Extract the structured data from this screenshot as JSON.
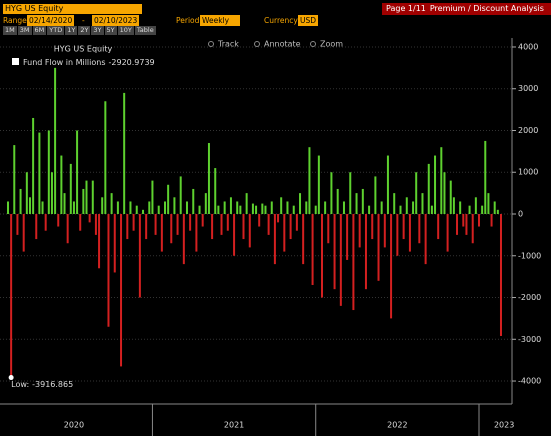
{
  "header": {
    "security": "HYG US Equity",
    "page": "Page 1/11",
    "function": "Premium / Discount Analysis",
    "range_label": "Range",
    "range_start": "02/14/2020",
    "range_sep": "-",
    "range_end": "02/10/2023",
    "period_label": "Period",
    "period": "Weekly",
    "currency_label": "Currency",
    "currency": "USD",
    "buttons": [
      "1M",
      "3M",
      "6M",
      "YTD",
      "1Y",
      "2Y",
      "3Y",
      "5Y",
      "10Y",
      "Table"
    ],
    "tools": [
      "Track",
      "Annotate",
      "Zoom"
    ]
  },
  "chart_data": {
    "type": "bar",
    "title": "HYG US Equity",
    "low_label": "Low:",
    "series": [
      {
        "name": "Fund Flow in Millions",
        "color_positive": "#5ed12f",
        "color_negative": "#d42020",
        "values": [
          300,
          -3916.865,
          1650,
          -500,
          600,
          -900,
          1000,
          400,
          2300,
          -600,
          1950,
          300,
          -400,
          2000,
          1000,
          3500,
          -300,
          1400,
          500,
          -700,
          1200,
          300,
          2000,
          -400,
          600,
          800,
          -200,
          800,
          -500,
          -1300,
          400,
          2700,
          -2700,
          500,
          -1400,
          300,
          -3650,
          2900,
          -600,
          300,
          -400,
          200,
          -2000,
          100,
          -600,
          300,
          800,
          -500,
          200,
          -900,
          300,
          700,
          -700,
          400,
          -500,
          900,
          -1200,
          300,
          -400,
          600,
          -900,
          200,
          -300,
          500,
          1700,
          -600,
          1100,
          200,
          -500,
          300,
          -400,
          400,
          -1000,
          300,
          200,
          -600,
          500,
          -800,
          250,
          200,
          -300,
          250,
          200,
          -500,
          300,
          -1200,
          -200,
          400,
          -900,
          300,
          -600,
          200,
          -400,
          500,
          -1200,
          300,
          1600,
          -1700,
          200,
          1400,
          -2000,
          300,
          -700,
          1000,
          -1800,
          600,
          -2200,
          300,
          -1100,
          1000,
          -2300,
          500,
          -800,
          600,
          -1800,
          200,
          -600,
          900,
          -1600,
          300,
          -800,
          1400,
          -2500,
          500,
          -1000,
          200,
          -600,
          400,
          -900,
          300,
          1000,
          -700,
          500,
          -1200,
          1200,
          200,
          1400,
          -600,
          1600,
          1000,
          -900,
          800,
          400,
          -500,
          300,
          -300,
          -500,
          200,
          -700,
          400,
          -300,
          200,
          1750,
          500,
          -300,
          300,
          100,
          -2920.9739
        ]
      }
    ],
    "year_labels": [
      {
        "value": 21,
        "label": "2020"
      },
      {
        "value": 72,
        "label": "2021"
      },
      {
        "value": 124,
        "label": "2022"
      },
      {
        "value": 158,
        "label": "2023"
      }
    ],
    "year_dividers": [
      46,
      98,
      150
    ],
    "ylim": [
      -4550,
      4215
    ],
    "yticks": [
      -4000,
      -3000,
      -2000,
      -1000,
      0,
      1000,
      2000,
      3000,
      4000
    ]
  }
}
